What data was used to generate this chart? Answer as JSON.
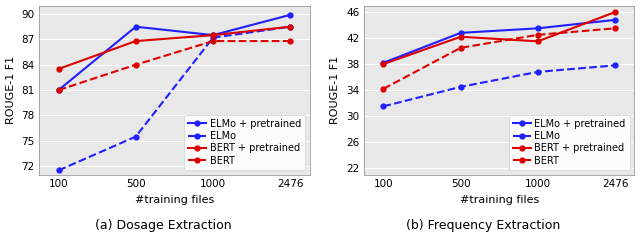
{
  "x_ticks": [
    100,
    500,
    1000,
    2476
  ],
  "x_labels": [
    "100",
    "500",
    "1000",
    "2476"
  ],
  "dosage": {
    "elmo_pretrained": [
      81.0,
      88.5,
      87.5,
      89.9
    ],
    "elmo": [
      71.5,
      75.5,
      87.2,
      88.5
    ],
    "bert_pretrained": [
      83.5,
      86.8,
      87.5,
      88.5
    ],
    "bert": [
      81.0,
      84.0,
      86.8,
      86.8
    ],
    "ylim": [
      71,
      91
    ],
    "yticks": [
      72,
      75,
      78,
      81,
      84,
      87,
      90
    ],
    "ylabel": "ROUGE-1 F1",
    "xlabel": "#training files",
    "caption": "(a) Dosage Extraction"
  },
  "frequency": {
    "elmo_pretrained": [
      38.2,
      42.8,
      43.5,
      44.8
    ],
    "elmo": [
      31.5,
      34.5,
      36.8,
      37.8
    ],
    "bert_pretrained": [
      38.0,
      42.2,
      41.5,
      46.0
    ],
    "bert": [
      34.2,
      40.5,
      42.5,
      43.5
    ],
    "ylim": [
      21,
      47
    ],
    "yticks": [
      22,
      26,
      30,
      34,
      38,
      42,
      46
    ],
    "ylabel": "ROUGE-1 F1",
    "xlabel": "#training files",
    "caption": "(b) Frequency Extraction"
  },
  "blue_solid": "#1f1fff",
  "red_solid": "#dd0000",
  "marker": "o",
  "markersize": 3.5,
  "linewidth": 1.5,
  "legend_labels": [
    "ELMo + pretrained",
    "ELMo",
    "BERT + pretrained",
    "BERT"
  ],
  "background_color": "#e8e8e8",
  "caption_fontsize": 9,
  "tick_fontsize": 7.5,
  "label_fontsize": 8,
  "legend_fontsize": 7
}
